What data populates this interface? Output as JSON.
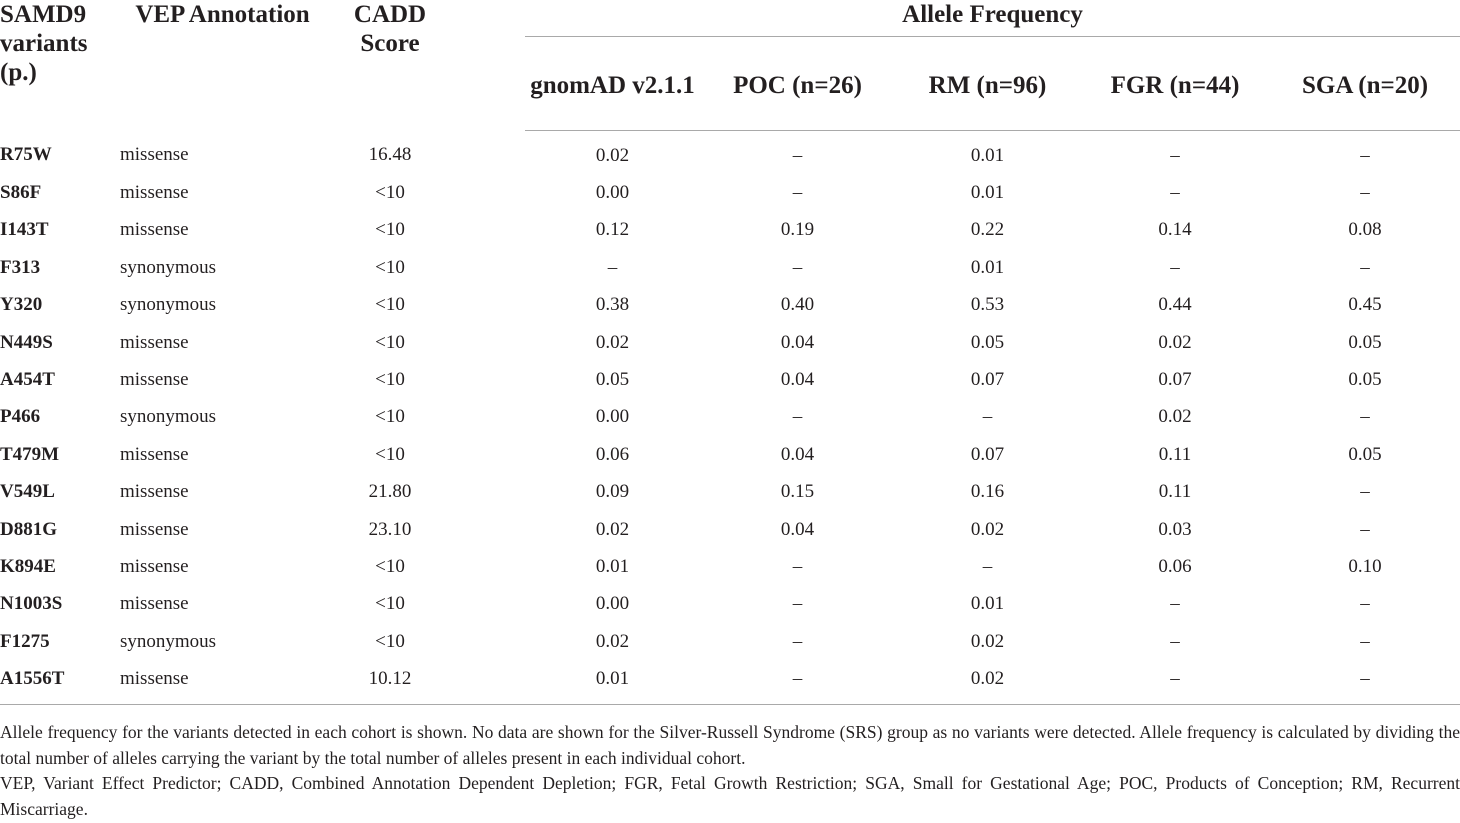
{
  "table": {
    "headers": {
      "variant": "SAMD9 variants (p.)",
      "vep": "VEP Annotation",
      "cadd": "CADD Score",
      "allele_group": "Allele Frequency",
      "cohorts": [
        "gnomAD v2.1.1",
        "POC (n=26)",
        "RM (n=96)",
        "FGR (n=44)",
        "SGA (n=20)"
      ]
    },
    "rows": [
      {
        "variant": "R75W",
        "annotation": "missense",
        "cadd": "16.48",
        "gnomad": "0.02",
        "poc": "–",
        "rm": "0.01",
        "fgr": "–",
        "sga": "–"
      },
      {
        "variant": "S86F",
        "annotation": "missense",
        "cadd": "<10",
        "gnomad": "0.00",
        "poc": "–",
        "rm": "0.01",
        "fgr": "–",
        "sga": "–"
      },
      {
        "variant": "I143T",
        "annotation": "missense",
        "cadd": "<10",
        "gnomad": "0.12",
        "poc": "0.19",
        "rm": "0.22",
        "fgr": "0.14",
        "sga": "0.08"
      },
      {
        "variant": "F313",
        "annotation": "synonymous",
        "cadd": "<10",
        "gnomad": "–",
        "poc": "–",
        "rm": "0.01",
        "fgr": "–",
        "sga": "–"
      },
      {
        "variant": "Y320",
        "annotation": "synonymous",
        "cadd": "<10",
        "gnomad": "0.38",
        "poc": "0.40",
        "rm": "0.53",
        "fgr": "0.44",
        "sga": "0.45"
      },
      {
        "variant": "N449S",
        "annotation": "missense",
        "cadd": "<10",
        "gnomad": "0.02",
        "poc": "0.04",
        "rm": "0.05",
        "fgr": "0.02",
        "sga": "0.05"
      },
      {
        "variant": "A454T",
        "annotation": "missense",
        "cadd": "<10",
        "gnomad": "0.05",
        "poc": "0.04",
        "rm": "0.07",
        "fgr": "0.07",
        "sga": "0.05"
      },
      {
        "variant": "P466",
        "annotation": "synonymous",
        "cadd": "<10",
        "gnomad": "0.00",
        "poc": "–",
        "rm": "–",
        "fgr": "0.02",
        "sga": "–"
      },
      {
        "variant": "T479M",
        "annotation": "missense",
        "cadd": "<10",
        "gnomad": "0.06",
        "poc": "0.04",
        "rm": "0.07",
        "fgr": "0.11",
        "sga": "0.05"
      },
      {
        "variant": "V549L",
        "annotation": "missense",
        "cadd": "21.80",
        "gnomad": "0.09",
        "poc": "0.15",
        "rm": "0.16",
        "fgr": "0.11",
        "sga": "–"
      },
      {
        "variant": "D881G",
        "annotation": "missense",
        "cadd": "23.10",
        "gnomad": "0.02",
        "poc": "0.04",
        "rm": "0.02",
        "fgr": "0.03",
        "sga": "–"
      },
      {
        "variant": "K894E",
        "annotation": "missense",
        "cadd": "<10",
        "gnomad": "0.01",
        "poc": "–",
        "rm": "–",
        "fgr": "0.06",
        "sga": "0.10"
      },
      {
        "variant": "N1003S",
        "annotation": "missense",
        "cadd": "<10",
        "gnomad": "0.00",
        "poc": "–",
        "rm": "0.01",
        "fgr": "–",
        "sga": "–"
      },
      {
        "variant": "F1275",
        "annotation": "synonymous",
        "cadd": "<10",
        "gnomad": "0.02",
        "poc": "–",
        "rm": "0.02",
        "fgr": "–",
        "sga": "–"
      },
      {
        "variant": "A1556T",
        "annotation": "missense",
        "cadd": "10.12",
        "gnomad": "0.01",
        "poc": "–",
        "rm": "0.02",
        "fgr": "–",
        "sga": "–"
      }
    ]
  },
  "footnotes": [
    "Allele frequency for the variants detected in each cohort is shown. No data are shown for the Silver-Russell Syndrome (SRS) group as no variants were detected. Allele frequency is calculated by dividing the total number of alleles carrying the variant by the total number of alleles present in each individual cohort.",
    "VEP, Variant Effect Predictor; CADD, Combined Annotation Dependent Depletion; FGR, Fetal Growth Restriction; SGA, Small for Gestational Age; POC, Products of Conception; RM, Recurrent Miscarriage."
  ]
}
